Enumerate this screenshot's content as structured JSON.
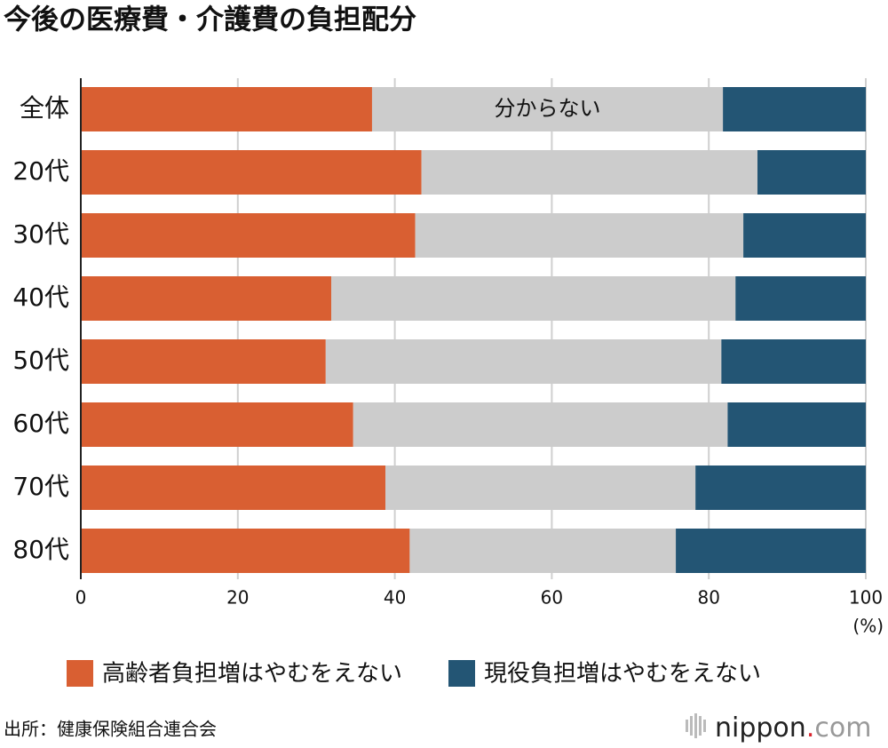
{
  "chart_data": {
    "type": "stacked_bar_horizontal",
    "title": "今後の医療費・介護費の負担配分",
    "categories": [
      "全体",
      "20代",
      "30代",
      "40代",
      "50代",
      "60代",
      "70代",
      "80代"
    ],
    "series": [
      {
        "name": "高齢者負担増はやむをえない",
        "color": "#d95f32",
        "values": [
          37.1,
          43.4,
          42.6,
          31.9,
          31.2,
          34.7,
          38.8,
          41.9
        ]
      },
      {
        "name": "分からない",
        "color": "#cccccc",
        "legend": false,
        "values": [
          44.7,
          42.8,
          41.8,
          51.5,
          50.4,
          47.7,
          39.5,
          33.9
        ]
      },
      {
        "name": "現役負担増はやむをえない",
        "color": "#235574",
        "values": [
          18.2,
          13.8,
          15.6,
          16.6,
          18.4,
          17.6,
          21.7,
          24.2
        ]
      }
    ],
    "xlim": [
      0,
      100
    ],
    "xticks": [
      0,
      20,
      40,
      60,
      80,
      100
    ],
    "x_unit": "(%)",
    "grid": true,
    "source": "出所：健康保険組合連合会",
    "logo": {
      "name": "nippon",
      "dot": ".",
      "tld": "com"
    }
  }
}
